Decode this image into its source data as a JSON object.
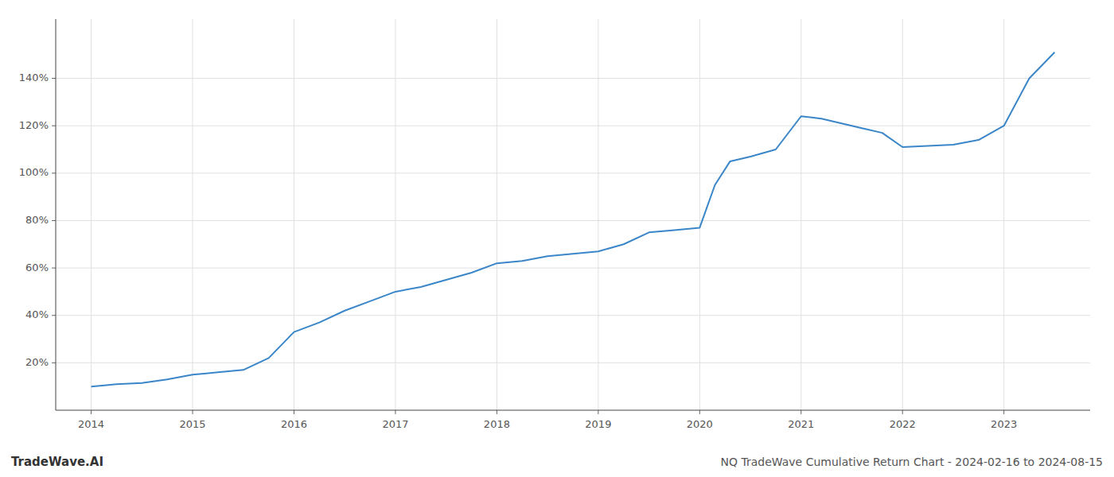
{
  "chart_data": {
    "type": "line",
    "title": "NQ TradeWave Cumulative Return Chart - 2024-02-16 to 2024-08-15",
    "annotations": [
      "TradeWave.AI"
    ],
    "x": [
      2014.0,
      2014.13,
      2014.25,
      2014.5,
      2014.75,
      2015.0,
      2015.25,
      2015.5,
      2015.75,
      2016.0,
      2016.25,
      2016.5,
      2016.75,
      2017.0,
      2017.25,
      2017.5,
      2017.75,
      2018.0,
      2018.25,
      2018.5,
      2018.75,
      2019.0,
      2019.25,
      2019.5,
      2019.75,
      2020.0,
      2020.15,
      2020.3,
      2020.5,
      2020.75,
      2021.0,
      2021.2,
      2021.4,
      2021.6,
      2021.8,
      2022.0,
      2022.25,
      2022.5,
      2022.75,
      2023.0,
      2023.25,
      2023.5
    ],
    "values": [
      10,
      10.5,
      11,
      11.5,
      13,
      15,
      16,
      17,
      22,
      33,
      37,
      42,
      46,
      50,
      52,
      55,
      58,
      62,
      63,
      65,
      66,
      67,
      70,
      75,
      76,
      77,
      95,
      105,
      107,
      110,
      124,
      123,
      121,
      119,
      117,
      111,
      111.5,
      112,
      114,
      120,
      140,
      151
    ],
    "color": "#3a86c8",
    "xlim": [
      2013.65,
      2023.85
    ],
    "ylim": [
      0,
      165
    ],
    "xticks": [
      2014,
      2015,
      2016,
      2017,
      2018,
      2019,
      2020,
      2021,
      2022,
      2023
    ],
    "yticks": [
      {
        "value": 20,
        "label": "20%"
      },
      {
        "value": 40,
        "label": "40%"
      },
      {
        "value": 60,
        "label": "60%"
      },
      {
        "value": 80,
        "label": "80%"
      },
      {
        "value": 100,
        "label": "100%"
      },
      {
        "value": 120,
        "label": "120%"
      },
      {
        "value": 140,
        "label": "140%"
      }
    ],
    "grid": true
  }
}
